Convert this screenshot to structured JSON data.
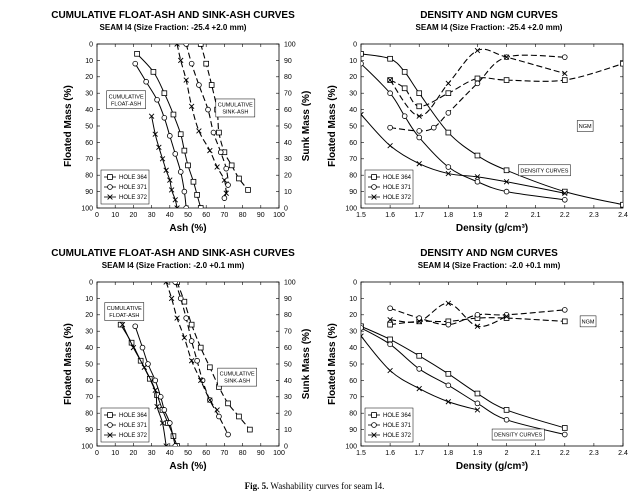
{
  "figure": {
    "caption_label": "Fig. 5.",
    "caption_text": "Washability curves for seam I4."
  },
  "chart_data": [
    {
      "id": "ash_1",
      "type": "line",
      "title": "CUMULATIVE FLOAT-ASH AND SINK-ASH CURVES",
      "subtitle": "SEAM I4  (Size Fraction: -25.4 +2.0 mm)",
      "xlabel": "Ash (%)",
      "ylabel": "Floated Mass (%)",
      "y2label": "Sunk Mass (%)",
      "xlim": [
        0,
        100
      ],
      "ylim": [
        100,
        0
      ],
      "xticks": [
        0,
        10,
        20,
        30,
        40,
        50,
        60,
        70,
        80,
        90,
        100
      ],
      "yticks": [
        0,
        10,
        20,
        30,
        40,
        50,
        60,
        70,
        80,
        90,
        100
      ],
      "y2ticks": [
        100,
        90,
        80,
        70,
        60,
        50,
        40,
        30,
        20,
        10,
        0
      ],
      "legend": {
        "position": "bottom-left",
        "entries": [
          "HOLE 364",
          "HOLE 371",
          "HOLE 372"
        ]
      },
      "annotations": [
        {
          "lines": [
            "CUMULATIVE",
            "FLOAT-ASH"
          ],
          "x": 16,
          "y": 34
        },
        {
          "lines": [
            "CUMULATIVE",
            "SINK-ASH"
          ],
          "x": 76,
          "y": 39
        }
      ],
      "series": [
        {
          "name": "HOLE 364",
          "group": "float",
          "marker": "square",
          "dash": false,
          "x": [
            22,
            31,
            37,
            42,
            46,
            48,
            50,
            53,
            55,
            57
          ],
          "y": [
            6,
            17,
            30,
            43,
            55,
            65,
            74,
            84,
            92,
            100
          ]
        },
        {
          "name": "HOLE 371",
          "group": "float",
          "marker": "circle",
          "dash": false,
          "x": [
            21,
            27,
            33,
            37,
            40,
            43,
            46,
            48,
            49
          ],
          "y": [
            12,
            23,
            34,
            45,
            56,
            67,
            78,
            90,
            100
          ]
        },
        {
          "name": "HOLE 372",
          "group": "float",
          "marker": "cross",
          "dash": false,
          "x": [
            30,
            32,
            34,
            36,
            38,
            40,
            41,
            43,
            44
          ],
          "y": [
            44,
            55,
            63,
            70,
            77,
            83,
            89,
            95,
            100
          ]
        },
        {
          "name": "HOLE 364",
          "group": "sink",
          "marker": "square",
          "dash": true,
          "x": [
            57,
            60,
            63,
            66,
            67,
            70,
            74,
            78,
            83
          ],
          "y": [
            0,
            12,
            25,
            40,
            54,
            66,
            74,
            82,
            89
          ]
        },
        {
          "name": "HOLE 371",
          "group": "sink",
          "marker": "circle",
          "dash": true,
          "x": [
            49,
            52,
            56,
            61,
            64,
            68,
            71,
            72,
            70
          ],
          "y": [
            0,
            12,
            25,
            40,
            54,
            66,
            76,
            86,
            94
          ]
        },
        {
          "name": "HOLE 372",
          "group": "sink",
          "marker": "cross",
          "dash": true,
          "x": [
            44,
            46,
            49,
            52,
            56,
            62,
            66,
            70,
            71
          ],
          "y": [
            0,
            10,
            22,
            38,
            53,
            65,
            75,
            83,
            91
          ]
        }
      ]
    },
    {
      "id": "density_1",
      "type": "line",
      "title": "DENSITY AND NGM CURVES",
      "subtitle": "SEAM I4  (Size Fraction: -25.4 +2.0 mm)",
      "xlabel": "Density (g/cm³)",
      "ylabel": "Floated Mass (%)",
      "xlim": [
        1.5,
        2.4
      ],
      "ylim": [
        100,
        0
      ],
      "xticks": [
        1.5,
        1.6,
        1.7,
        1.8,
        1.9,
        2.0,
        2.1,
        2.2,
        2.3,
        2.4
      ],
      "yticks": [
        0,
        10,
        20,
        30,
        40,
        50,
        60,
        70,
        80,
        90,
        100
      ],
      "legend": {
        "position": "bottom-left",
        "entries": [
          "HOLE 364",
          "HOLE 371",
          "HOLE 372"
        ]
      },
      "annotations": [
        {
          "lines": [
            "NGM"
          ],
          "x": 2.27,
          "y": 50
        },
        {
          "lines": [
            "DENSITY CURVES"
          ],
          "x": 2.13,
          "y": 77
        }
      ],
      "series": [
        {
          "name": "HOLE 364",
          "group": "density",
          "marker": "square",
          "dash": false,
          "x": [
            1.5,
            1.6,
            1.65,
            1.7,
            1.8,
            1.9,
            2.0,
            2.2,
            2.4
          ],
          "y": [
            6,
            9,
            17,
            30,
            54,
            68,
            77,
            90,
            98
          ]
        },
        {
          "name": "HOLE 371",
          "group": "density",
          "marker": "circle",
          "dash": false,
          "x": [
            1.5,
            1.6,
            1.65,
            1.7,
            1.8,
            1.9,
            2.0,
            2.2
          ],
          "y": [
            12,
            30,
            44,
            57,
            75,
            84,
            90,
            95
          ]
        },
        {
          "name": "HOLE 372",
          "group": "density",
          "marker": "cross",
          "dash": false,
          "x": [
            1.5,
            1.6,
            1.7,
            1.8,
            1.9,
            2.0,
            2.2
          ],
          "y": [
            43,
            62,
            73,
            79,
            81,
            84,
            91
          ]
        },
        {
          "name": "HOLE 364",
          "group": "ngm",
          "marker": "square",
          "dash": true,
          "x": [
            1.6,
            1.65,
            1.7,
            1.8,
            1.9,
            2.0,
            2.2,
            2.4
          ],
          "y": [
            22,
            27,
            38,
            30,
            21,
            22,
            22,
            12
          ]
        },
        {
          "name": "HOLE 371",
          "group": "ngm",
          "marker": "circle",
          "dash": true,
          "x": [
            1.6,
            1.7,
            1.75,
            1.8,
            1.9,
            2.0,
            2.2
          ],
          "y": [
            51,
            53,
            51,
            42,
            24,
            8,
            8
          ]
        },
        {
          "name": "HOLE 372",
          "group": "ngm",
          "marker": "cross",
          "dash": true,
          "x": [
            1.6,
            1.7,
            1.8,
            1.9,
            2.0,
            2.2
          ],
          "y": [
            22,
            44,
            24,
            4,
            8,
            18
          ]
        }
      ]
    },
    {
      "id": "ash_2",
      "type": "line",
      "title": "CUMULATIVE FLOAT-ASH AND SINK-ASH CURVES",
      "subtitle": "SEAM I4  (Size Fraction: -2.0 +0.1 mm)",
      "xlabel": "Ash (%)",
      "ylabel": "Floated Mass (%)",
      "y2label": "Sunk Mass (%)",
      "xlim": [
        0,
        100
      ],
      "ylim": [
        100,
        0
      ],
      "xticks": [
        0,
        10,
        20,
        30,
        40,
        50,
        60,
        70,
        80,
        90,
        100
      ],
      "yticks": [
        0,
        10,
        20,
        30,
        40,
        50,
        60,
        70,
        80,
        90,
        100
      ],
      "y2ticks": [
        100,
        90,
        80,
        70,
        60,
        50,
        40,
        30,
        20,
        10,
        0
      ],
      "legend": {
        "position": "bottom-left",
        "entries": [
          "HOLE 364",
          "HOLE 371",
          "HOLE 372"
        ]
      },
      "annotations": [
        {
          "lines": [
            "CUMULATIVE",
            "FLOAT-ASH"
          ],
          "x": 15,
          "y": 18
        },
        {
          "lines": [
            "CUMULATIVE",
            "SINK-ASH"
          ],
          "x": 77,
          "y": 58
        }
      ],
      "series": [
        {
          "name": "HOLE 364",
          "group": "float",
          "marker": "square",
          "dash": false,
          "x": [
            13,
            19,
            24,
            29,
            33,
            36,
            39,
            42,
            44
          ],
          "y": [
            26,
            37,
            48,
            59,
            69,
            78,
            86,
            94,
            100
          ]
        },
        {
          "name": "HOLE 371",
          "group": "float",
          "marker": "circle",
          "dash": false,
          "x": [
            21,
            25,
            28,
            32,
            35,
            37,
            40,
            43
          ],
          "y": [
            27,
            40,
            50,
            60,
            70,
            78,
            86,
            100
          ]
        },
        {
          "name": "HOLE 372",
          "group": "float",
          "marker": "cross",
          "dash": false,
          "x": [
            14,
            20,
            26,
            32,
            33,
            36,
            38
          ],
          "y": [
            26,
            40,
            52,
            66,
            76,
            86,
            100
          ]
        },
        {
          "name": "HOLE 364",
          "group": "sink",
          "marker": "square",
          "dash": true,
          "x": [
            44,
            48,
            52,
            57,
            62,
            67,
            72,
            78,
            84
          ],
          "y": [
            0,
            12,
            26,
            40,
            52,
            64,
            74,
            82,
            90
          ]
        },
        {
          "name": "HOLE 371",
          "group": "sink",
          "marker": "circle",
          "dash": true,
          "x": [
            43,
            46,
            49,
            52,
            55,
            58,
            62,
            67,
            72
          ],
          "y": [
            0,
            10,
            22,
            36,
            48,
            60,
            72,
            82,
            93
          ]
        },
        {
          "name": "HOLE 372",
          "group": "sink",
          "marker": "cross",
          "dash": true,
          "x": [
            38,
            41,
            44,
            48,
            52,
            57,
            62,
            66
          ],
          "y": [
            0,
            10,
            22,
            34,
            48,
            60,
            72,
            78
          ]
        }
      ]
    },
    {
      "id": "density_2",
      "type": "line",
      "title": "DENSITY AND NGM CURVES",
      "subtitle": "SEAM I4  (Size Fraction: -2.0 +0.1 mm)",
      "xlabel": "Density (g/cm³)",
      "ylabel": "Floated Mass (%)",
      "xlim": [
        1.5,
        2.4
      ],
      "ylim": [
        100,
        0
      ],
      "xticks": [
        1.5,
        1.6,
        1.7,
        1.8,
        1.9,
        2.0,
        2.1,
        2.2,
        2.3,
        2.4
      ],
      "yticks": [
        0,
        10,
        20,
        30,
        40,
        50,
        60,
        70,
        80,
        90,
        100
      ],
      "legend": {
        "position": "bottom-left",
        "entries": [
          "HOLE 364",
          "HOLE 371",
          "HOLE 372"
        ]
      },
      "annotations": [
        {
          "lines": [
            "NGM"
          ],
          "x": 2.28,
          "y": 24
        },
        {
          "lines": [
            "DENSITY CURVES"
          ],
          "x": 2.04,
          "y": 93
        }
      ],
      "series": [
        {
          "name": "HOLE 364",
          "group": "density",
          "marker": "square",
          "dash": false,
          "x": [
            1.5,
            1.6,
            1.7,
            1.8,
            1.9,
            2.0,
            2.2
          ],
          "y": [
            27,
            35,
            45,
            56,
            68,
            78,
            89
          ]
        },
        {
          "name": "HOLE 371",
          "group": "density",
          "marker": "circle",
          "dash": false,
          "x": [
            1.5,
            1.6,
            1.7,
            1.8,
            1.9,
            2.0,
            2.2
          ],
          "y": [
            28,
            38,
            53,
            63,
            74,
            84,
            93
          ]
        },
        {
          "name": "HOLE 372",
          "group": "density",
          "marker": "cross",
          "dash": false,
          "x": [
            1.5,
            1.6,
            1.7,
            1.8,
            1.9
          ],
          "y": [
            33,
            54,
            65,
            73,
            78
          ]
        },
        {
          "name": "HOLE 364",
          "group": "ngm",
          "marker": "square",
          "dash": true,
          "x": [
            1.6,
            1.7,
            1.8,
            1.9,
            2.0,
            2.2
          ],
          "y": [
            26,
            24,
            24,
            22,
            22,
            24
          ]
        },
        {
          "name": "HOLE 371",
          "group": "ngm",
          "marker": "circle",
          "dash": true,
          "x": [
            1.6,
            1.7,
            1.8,
            1.9,
            2.0,
            2.2
          ],
          "y": [
            16,
            22,
            26,
            20,
            20,
            17
          ]
        },
        {
          "name": "HOLE 372",
          "group": "ngm",
          "marker": "cross",
          "dash": true,
          "x": [
            1.6,
            1.7,
            1.8,
            1.9,
            2.0
          ],
          "y": [
            23,
            24,
            13,
            27,
            21
          ]
        }
      ]
    }
  ]
}
